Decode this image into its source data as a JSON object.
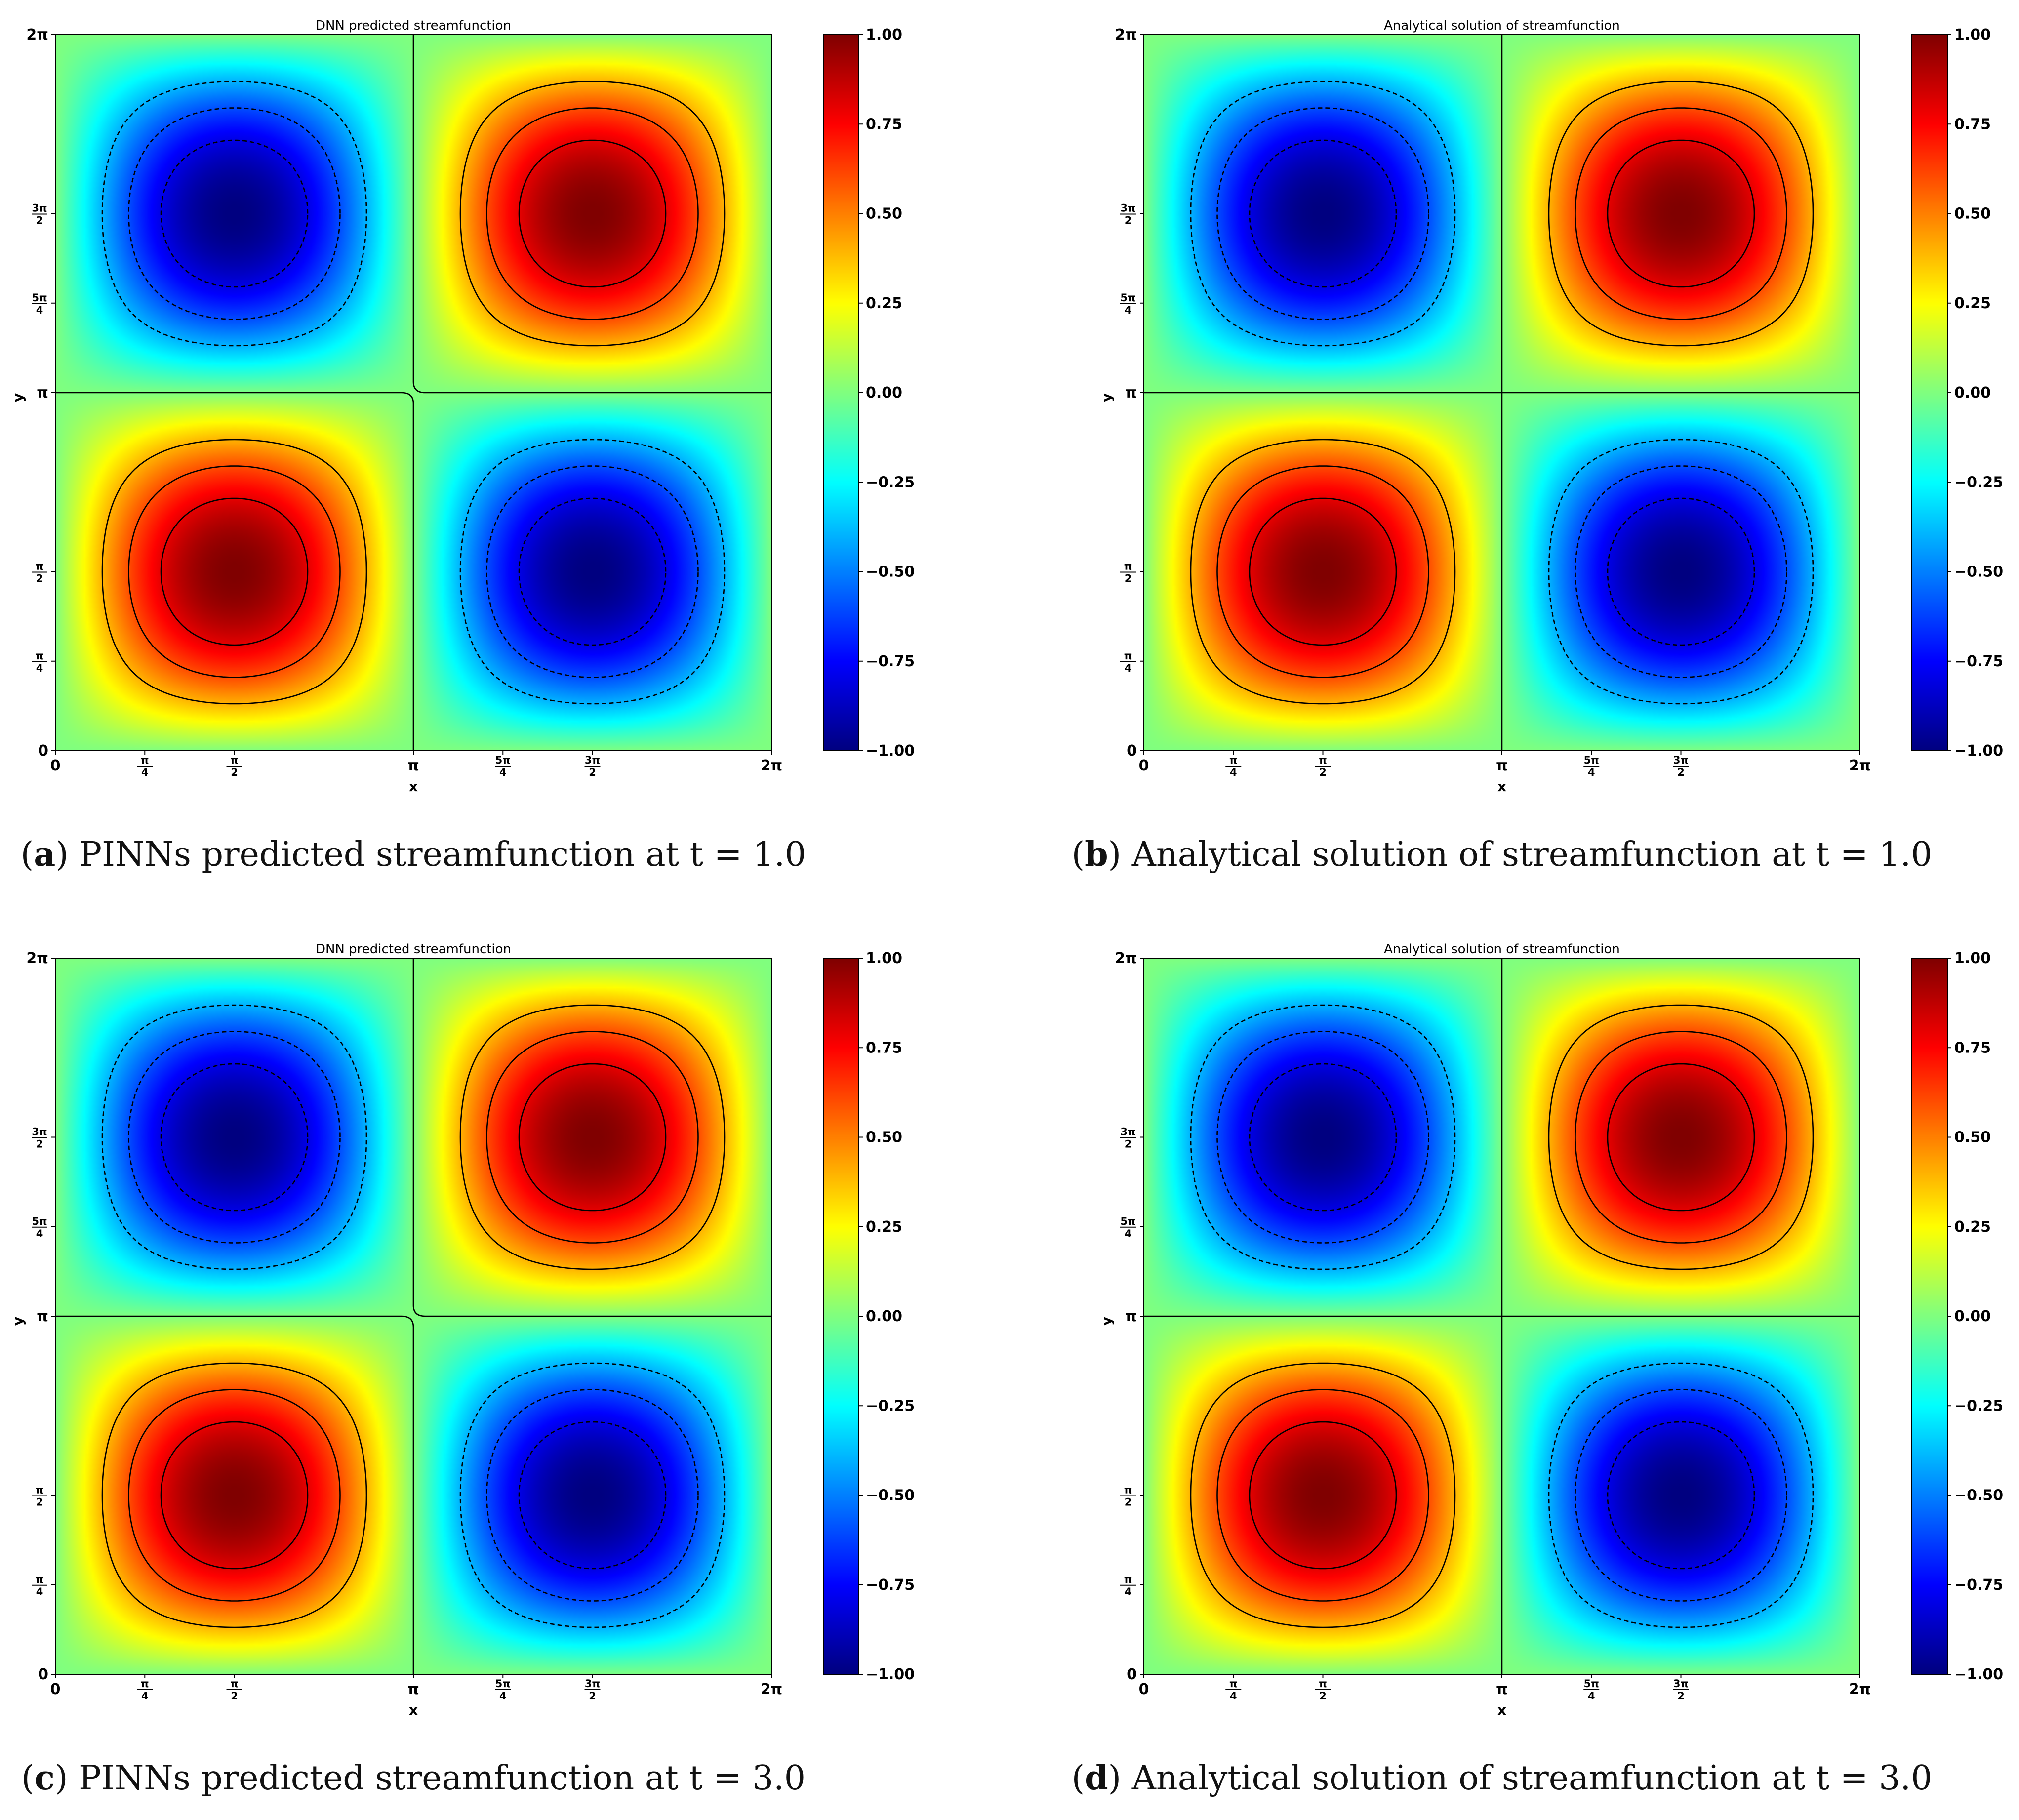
{
  "colormap": "jet",
  "contour_color": "#000000",
  "panels": [
    {
      "letter": "a",
      "caption": "PINNs predicted streamfunction at t = 1.0",
      "title": "DNN predicted streamfunction",
      "kind": "predicted"
    },
    {
      "letter": "b",
      "caption": "Analytical solution of streamfunction at t = 1.0",
      "title": "Analytical solution of streamfunction",
      "kind": "analytical"
    },
    {
      "letter": "c",
      "caption": "PINNs predicted streamfunction at t = 3.0",
      "title": "DNN predicted streamfunction",
      "kind": "predicted"
    },
    {
      "letter": "d",
      "caption": "Analytical solution of streamfunction at t = 3.0",
      "title": "Analytical solution of streamfunction",
      "kind": "analytical"
    }
  ],
  "chart_data": {
    "type": "heatmap",
    "field": "sin(x) * sin(y)",
    "xlabel": "x",
    "ylabel": "y",
    "xlim": [
      0,
      6.2832
    ],
    "ylim": [
      0,
      6.2832
    ],
    "x_ticks": [
      {
        "value": 0,
        "label": "0"
      },
      {
        "value": 0.7854,
        "label": "π/4"
      },
      {
        "value": 1.5708,
        "label": "π/2"
      },
      {
        "value": 3.1416,
        "label": "π"
      },
      {
        "value": 3.927,
        "label": "5π/4"
      },
      {
        "value": 4.7124,
        "label": "3π/2"
      },
      {
        "value": 6.2832,
        "label": "2π"
      }
    ],
    "y_ticks": [
      {
        "value": 0,
        "label": "0"
      },
      {
        "value": 0.7854,
        "label": "π/4"
      },
      {
        "value": 1.5708,
        "label": "π/2"
      },
      {
        "value": 3.1416,
        "label": "π"
      },
      {
        "value": 3.927,
        "label": "5π/4"
      },
      {
        "value": 4.7124,
        "label": "3π/2"
      },
      {
        "value": 6.2832,
        "label": "2π"
      }
    ],
    "colorbar": {
      "min": -1.0,
      "max": 1.0,
      "ticks": [
        "1.00",
        "0.75",
        "0.50",
        "0.25",
        "0.00",
        "−0.25",
        "−0.50",
        "−0.75",
        "−1.00"
      ]
    },
    "contour_levels": [
      -0.8,
      -0.6,
      -0.4,
      0,
      0.4,
      0.6,
      0.8
    ],
    "extrema": [
      {
        "x": 1.5708,
        "y": 4.7124,
        "value": -1.0
      },
      {
        "x": 4.7124,
        "y": 4.7124,
        "value": 1.0
      },
      {
        "x": 1.5708,
        "y": 1.5708,
        "value": 1.0
      },
      {
        "x": 4.7124,
        "y": 1.5708,
        "value": -1.0
      }
    ]
  }
}
